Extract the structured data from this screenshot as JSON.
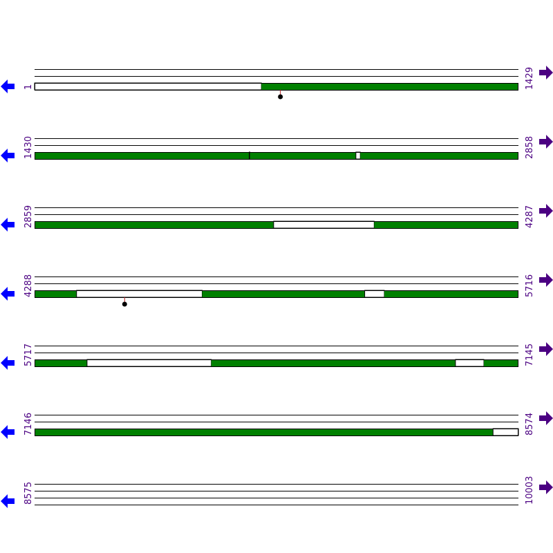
{
  "colors": {
    "feature": "#008000",
    "track_line": "#000000",
    "lollipop_stem": "#b22222",
    "lollipop_head": "#000000",
    "left_arrow": "#0000ff",
    "right_arrow": "#4b0082",
    "position_label": "#4b0082"
  },
  "icons": {
    "left": "arrow-left-icon",
    "right": "arrow-right-icon"
  },
  "rows": [
    {
      "start": 1,
      "end": 1429,
      "start_label": "1",
      "end_label": "1429",
      "features": [
        {
          "start": 1,
          "end": 1429,
          "segments": [
            [
              1,
              670,
              "gap"
            ],
            [
              671,
              1429,
              "fill"
            ]
          ]
        }
      ],
      "markers": [
        {
          "position": 727
        }
      ]
    },
    {
      "start": 1430,
      "end": 2858,
      "start_label": "1430",
      "end_label": "2858",
      "features": [
        {
          "start": 1430,
          "end": 2858,
          "segments": [
            [
              1430,
              2063,
              "fill"
            ],
            [
              2064,
              2065,
              "gap"
            ],
            [
              2066,
              2378,
              "fill"
            ],
            [
              2379,
              2391,
              "gap"
            ],
            [
              2392,
              2858,
              "fill"
            ]
          ]
        }
      ],
      "markers": []
    },
    {
      "start": 2859,
      "end": 4287,
      "start_label": "2859",
      "end_label": "4287",
      "features": [
        {
          "start": 2859,
          "end": 4287,
          "segments": [
            [
              2859,
              3564,
              "fill"
            ],
            [
              3565,
              3861,
              "gap"
            ],
            [
              3862,
              4287,
              "fill"
            ]
          ]
        }
      ],
      "markers": []
    },
    {
      "start": 4288,
      "end": 5716,
      "start_label": "4288",
      "end_label": "5716",
      "features": [
        {
          "start": 4288,
          "end": 5716,
          "segments": [
            [
              4288,
              4411,
              "fill"
            ],
            [
              4412,
              4782,
              "gap"
            ],
            [
              4783,
              5262,
              "fill"
            ],
            [
              5263,
              5320,
              "gap"
            ],
            [
              5321,
              5716,
              "fill"
            ]
          ]
        }
      ],
      "markers": [
        {
          "position": 4554
        }
      ]
    },
    {
      "start": 5717,
      "end": 7145,
      "start_label": "5717",
      "end_label": "7145",
      "features": [
        {
          "start": 5717,
          "end": 7145,
          "segments": [
            [
              5717,
              5871,
              "fill"
            ],
            [
              5872,
              6238,
              "gap"
            ],
            [
              6239,
              6959,
              "fill"
            ],
            [
              6960,
              7043,
              "gap"
            ],
            [
              7044,
              7145,
              "fill"
            ]
          ]
        }
      ],
      "markers": []
    },
    {
      "start": 7146,
      "end": 8574,
      "start_label": "7146",
      "end_label": "8574",
      "features": [
        {
          "start": 7146,
          "end": 8574,
          "segments": [
            [
              7146,
              8499,
              "fill"
            ],
            [
              8500,
              8574,
              "gap"
            ]
          ]
        }
      ],
      "markers": []
    },
    {
      "start": 8575,
      "end": 10003,
      "start_label": "8575",
      "end_label": "10003",
      "features": [],
      "markers": []
    }
  ]
}
